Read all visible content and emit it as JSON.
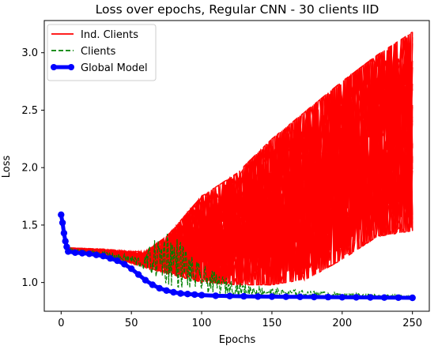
{
  "chart_data": {
    "type": "line",
    "title": "Loss over epochs, Regular CNN - 30 clients IID",
    "xlabel": "Epochs",
    "ylabel": "Loss",
    "xlim": [
      -12,
      262
    ],
    "ylim": [
      0.75,
      3.28
    ],
    "xticks": [
      0,
      50,
      100,
      150,
      200,
      250
    ],
    "yticks": [
      1.0,
      1.5,
      2.0,
      2.5,
      3.0
    ],
    "xtick_labels": [
      "0",
      "50",
      "100",
      "150",
      "200",
      "250"
    ],
    "ytick_labels": [
      "1.0",
      "1.5",
      "2.0",
      "2.5",
      "3.0"
    ],
    "grid": false,
    "legend_placement": "upper-left",
    "colors": {
      "ind_clients": "#ff0000",
      "clients": "#008000",
      "global_model": "#0000ff"
    },
    "series": [
      {
        "name": "Ind. Clients",
        "style": "solid",
        "count": 30,
        "envelope": {
          "x": [
            0,
            10,
            30,
            50,
            60,
            75,
            100,
            125,
            150,
            175,
            200,
            225,
            250
          ],
          "low": [
            1.3,
            1.27,
            1.24,
            1.17,
            1.13,
            1.08,
            1.0,
            0.98,
            0.98,
            1.03,
            1.2,
            1.4,
            1.45
          ],
          "high": [
            1.3,
            1.3,
            1.29,
            1.27,
            1.27,
            1.4,
            1.75,
            1.95,
            2.25,
            2.5,
            2.75,
            2.98,
            3.18
          ]
        }
      },
      {
        "name": "Clients",
        "style": "dashed",
        "envelope": {
          "x": [
            0,
            10,
            30,
            50,
            60,
            75,
            100,
            125,
            150,
            175,
            200,
            225,
            250
          ],
          "low": [
            1.29,
            1.26,
            1.23,
            1.16,
            1.1,
            0.97,
            0.91,
            0.89,
            0.88,
            0.88,
            0.88,
            0.87,
            0.87
          ],
          "high": [
            1.31,
            1.29,
            1.27,
            1.24,
            1.22,
            1.43,
            1.15,
            1.0,
            0.95,
            0.93,
            0.91,
            0.9,
            0.89
          ]
        }
      },
      {
        "name": "Global Model",
        "style": "solid",
        "markers": true,
        "x": [
          0,
          1,
          2,
          3,
          4,
          5,
          10,
          15,
          20,
          25,
          30,
          35,
          40,
          45,
          50,
          55,
          60,
          65,
          70,
          75,
          80,
          85,
          90,
          95,
          100,
          110,
          120,
          130,
          140,
          150,
          160,
          170,
          180,
          190,
          200,
          210,
          220,
          230,
          240,
          250
        ],
        "y": [
          1.59,
          1.52,
          1.43,
          1.36,
          1.31,
          1.27,
          1.26,
          1.255,
          1.25,
          1.24,
          1.23,
          1.21,
          1.19,
          1.16,
          1.12,
          1.07,
          1.02,
          0.98,
          0.95,
          0.93,
          0.915,
          0.905,
          0.9,
          0.895,
          0.89,
          0.885,
          0.882,
          0.88,
          0.878,
          0.877,
          0.876,
          0.875,
          0.874,
          0.873,
          0.872,
          0.871,
          0.87,
          0.869,
          0.868,
          0.867
        ]
      }
    ]
  }
}
